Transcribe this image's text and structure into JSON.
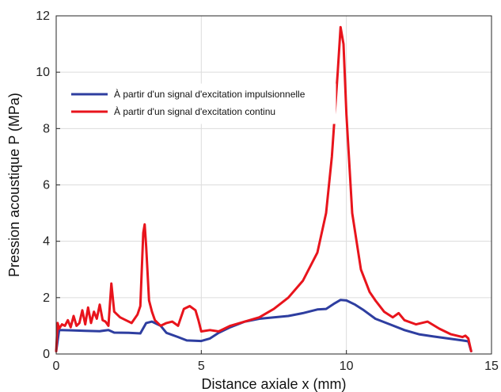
{
  "chart_data": {
    "type": "line",
    "xlabel": "Distance axiale x (mm)",
    "ylabel": "Pression acoustique P (MPa)",
    "xlim": [
      0,
      15
    ],
    "ylim": [
      0,
      12
    ],
    "xticks": [
      0,
      5,
      10,
      15
    ],
    "yticks": [
      0,
      2,
      4,
      6,
      8,
      10,
      12
    ],
    "grid": true,
    "legend_position": "top-left",
    "series": [
      {
        "name": "À partir d'un signal d'excitation impulsionnelle",
        "color": "#2e3ea0",
        "x": [
          0,
          0.1,
          0.5,
          1.0,
          1.5,
          1.8,
          2.0,
          2.5,
          2.9,
          3.1,
          3.3,
          3.6,
          3.8,
          4.2,
          4.5,
          5.0,
          5.3,
          5.6,
          6.0,
          6.5,
          7.0,
          7.5,
          8.0,
          8.5,
          9.0,
          9.3,
          9.6,
          9.8,
          10.0,
          10.3,
          10.6,
          11.0,
          11.5,
          12.0,
          12.5,
          13.0,
          13.5,
          14.0,
          14.2,
          14.3
        ],
        "values": [
          0.1,
          0.85,
          0.84,
          0.82,
          0.81,
          0.85,
          0.76,
          0.75,
          0.73,
          1.1,
          1.15,
          1.0,
          0.75,
          0.6,
          0.48,
          0.46,
          0.55,
          0.75,
          0.95,
          1.15,
          1.25,
          1.3,
          1.35,
          1.45,
          1.58,
          1.6,
          1.8,
          1.92,
          1.9,
          1.75,
          1.55,
          1.25,
          1.05,
          0.85,
          0.7,
          0.62,
          0.55,
          0.48,
          0.45,
          0.1
        ]
      },
      {
        "name": "À partir d'un signal d'excitation continu",
        "color": "#e8141c",
        "x": [
          0,
          0.05,
          0.1,
          0.2,
          0.3,
          0.4,
          0.5,
          0.6,
          0.7,
          0.8,
          0.9,
          1.0,
          1.1,
          1.2,
          1.3,
          1.4,
          1.5,
          1.6,
          1.7,
          1.8,
          1.9,
          2.0,
          2.2,
          2.4,
          2.6,
          2.8,
          2.9,
          3.0,
          3.05,
          3.1,
          3.2,
          3.3,
          3.4,
          3.6,
          3.8,
          4.0,
          4.2,
          4.4,
          4.6,
          4.8,
          4.9,
          5.0,
          5.3,
          5.6,
          6.0,
          6.5,
          7.0,
          7.5,
          8.0,
          8.5,
          9.0,
          9.3,
          9.5,
          9.7,
          9.8,
          9.9,
          10.0,
          10.2,
          10.5,
          10.8,
          11.0,
          11.3,
          11.6,
          11.8,
          12.0,
          12.4,
          12.8,
          13.2,
          13.6,
          14.0,
          14.1,
          14.2,
          14.3
        ],
        "values": [
          0.1,
          1.1,
          0.9,
          1.05,
          1.0,
          1.2,
          0.95,
          1.35,
          1.0,
          1.1,
          1.55,
          1.05,
          1.65,
          1.1,
          1.5,
          1.25,
          1.75,
          1.2,
          1.15,
          1.0,
          2.5,
          1.5,
          1.3,
          1.2,
          1.1,
          1.4,
          1.7,
          4.3,
          4.6,
          3.8,
          1.9,
          1.5,
          1.2,
          1.0,
          1.1,
          1.15,
          1.0,
          1.6,
          1.7,
          1.55,
          1.2,
          0.8,
          0.85,
          0.8,
          1.0,
          1.15,
          1.3,
          1.6,
          2.0,
          2.6,
          3.6,
          5.0,
          7.0,
          10.0,
          11.6,
          11.0,
          8.5,
          5.0,
          3.0,
          2.2,
          1.9,
          1.5,
          1.3,
          1.45,
          1.2,
          1.05,
          1.15,
          0.9,
          0.7,
          0.6,
          0.65,
          0.55,
          0.1
        ]
      }
    ]
  }
}
